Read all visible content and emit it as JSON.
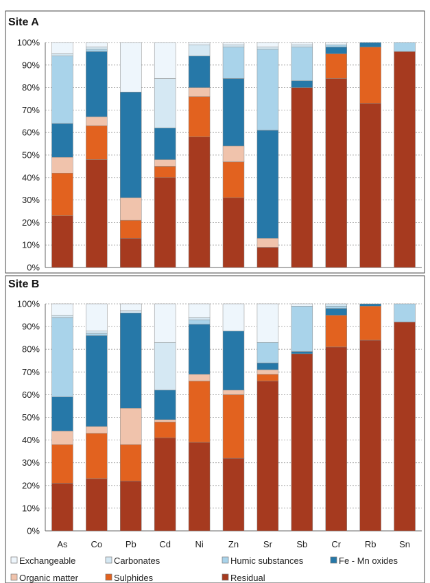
{
  "colors": {
    "Exchangeable": "#eef6fc",
    "Carbonates": "#d5e8f3",
    "Humic substances": "#a9d3ea",
    "Fe - Mn oxides": "#2678a8",
    "Organic matter": "#f0c3ac",
    "Sulphides": "#e2621f",
    "Residual": "#a63a1f"
  },
  "legend": [
    "Exchangeable",
    "Carbonates",
    "Humic substances",
    "Fe - Mn oxides",
    "Organic matter",
    "Sulphides",
    "Residual"
  ],
  "chart_data": [
    {
      "type": "bar",
      "stacked": true,
      "title": "Site A",
      "categories": [
        "As",
        "Co",
        "Pb",
        "Cd",
        "Ni",
        "Zn",
        "Sr",
        "Sb",
        "Cr",
        "Rb",
        "Sn"
      ],
      "y_ticks": [
        "0%",
        "10%",
        "20%",
        "30%",
        "40%",
        "50%",
        "60%",
        "70%",
        "80%",
        "90%",
        "100%"
      ],
      "ylim": [
        0,
        100
      ],
      "grid": true,
      "series": [
        {
          "name": "Residual",
          "values": [
            23,
            48,
            13,
            40,
            58,
            31,
            9,
            80,
            84,
            73,
            96
          ]
        },
        {
          "name": "Sulphides",
          "values": [
            19,
            15,
            8,
            5,
            18,
            16,
            0,
            0,
            11,
            25,
            0
          ]
        },
        {
          "name": "Organic matter",
          "values": [
            7,
            4,
            10,
            3,
            4,
            7,
            4,
            0,
            0,
            0,
            0
          ]
        },
        {
          "name": "Fe - Mn oxides",
          "values": [
            15,
            29,
            47,
            14,
            14,
            30,
            48,
            3,
            3,
            2,
            0
          ]
        },
        {
          "name": "Humic substances",
          "values": [
            30,
            1,
            0,
            0,
            0,
            14,
            36,
            15,
            1,
            0,
            4
          ]
        },
        {
          "name": "Carbonates",
          "values": [
            1,
            1,
            0,
            22,
            5,
            1,
            1,
            1,
            0,
            0,
            0
          ]
        },
        {
          "name": "Exchangeable",
          "values": [
            5,
            2,
            22,
            16,
            1,
            1,
            2,
            1,
            1,
            0,
            0
          ]
        }
      ]
    },
    {
      "type": "bar",
      "stacked": true,
      "title": "Site B",
      "categories": [
        "As",
        "Co",
        "Pb",
        "Cd",
        "Ni",
        "Zn",
        "Sr",
        "Sb",
        "Cr",
        "Rb",
        "Sn"
      ],
      "y_ticks": [
        "0%",
        "10%",
        "20%",
        "30%",
        "40%",
        "50%",
        "60%",
        "70%",
        "80%",
        "90%",
        "100%"
      ],
      "ylim": [
        0,
        100
      ],
      "grid": true,
      "series": [
        {
          "name": "Residual",
          "values": [
            21,
            23,
            22,
            41,
            39,
            32,
            66,
            78,
            81,
            84,
            92
          ]
        },
        {
          "name": "Sulphides",
          "values": [
            17,
            20,
            16,
            7,
            27,
            28,
            3,
            0,
            14,
            15,
            0
          ]
        },
        {
          "name": "Organic matter",
          "values": [
            6,
            3,
            16,
            1,
            3,
            2,
            2,
            0,
            0,
            0,
            0
          ]
        },
        {
          "name": "Fe - Mn oxides",
          "values": [
            15,
            40,
            42,
            13,
            22,
            26,
            3,
            1,
            3,
            1,
            0
          ]
        },
        {
          "name": "Humic substances",
          "values": [
            35,
            1,
            0,
            0,
            2,
            0,
            9,
            20,
            1,
            0,
            8
          ]
        },
        {
          "name": "Carbonates",
          "values": [
            1,
            1,
            1,
            21,
            1,
            0,
            0,
            0,
            1,
            0,
            0
          ]
        },
        {
          "name": "Exchangeable",
          "values": [
            5,
            12,
            3,
            17,
            6,
            12,
            17,
            1,
            0,
            0,
            0
          ]
        }
      ]
    }
  ]
}
